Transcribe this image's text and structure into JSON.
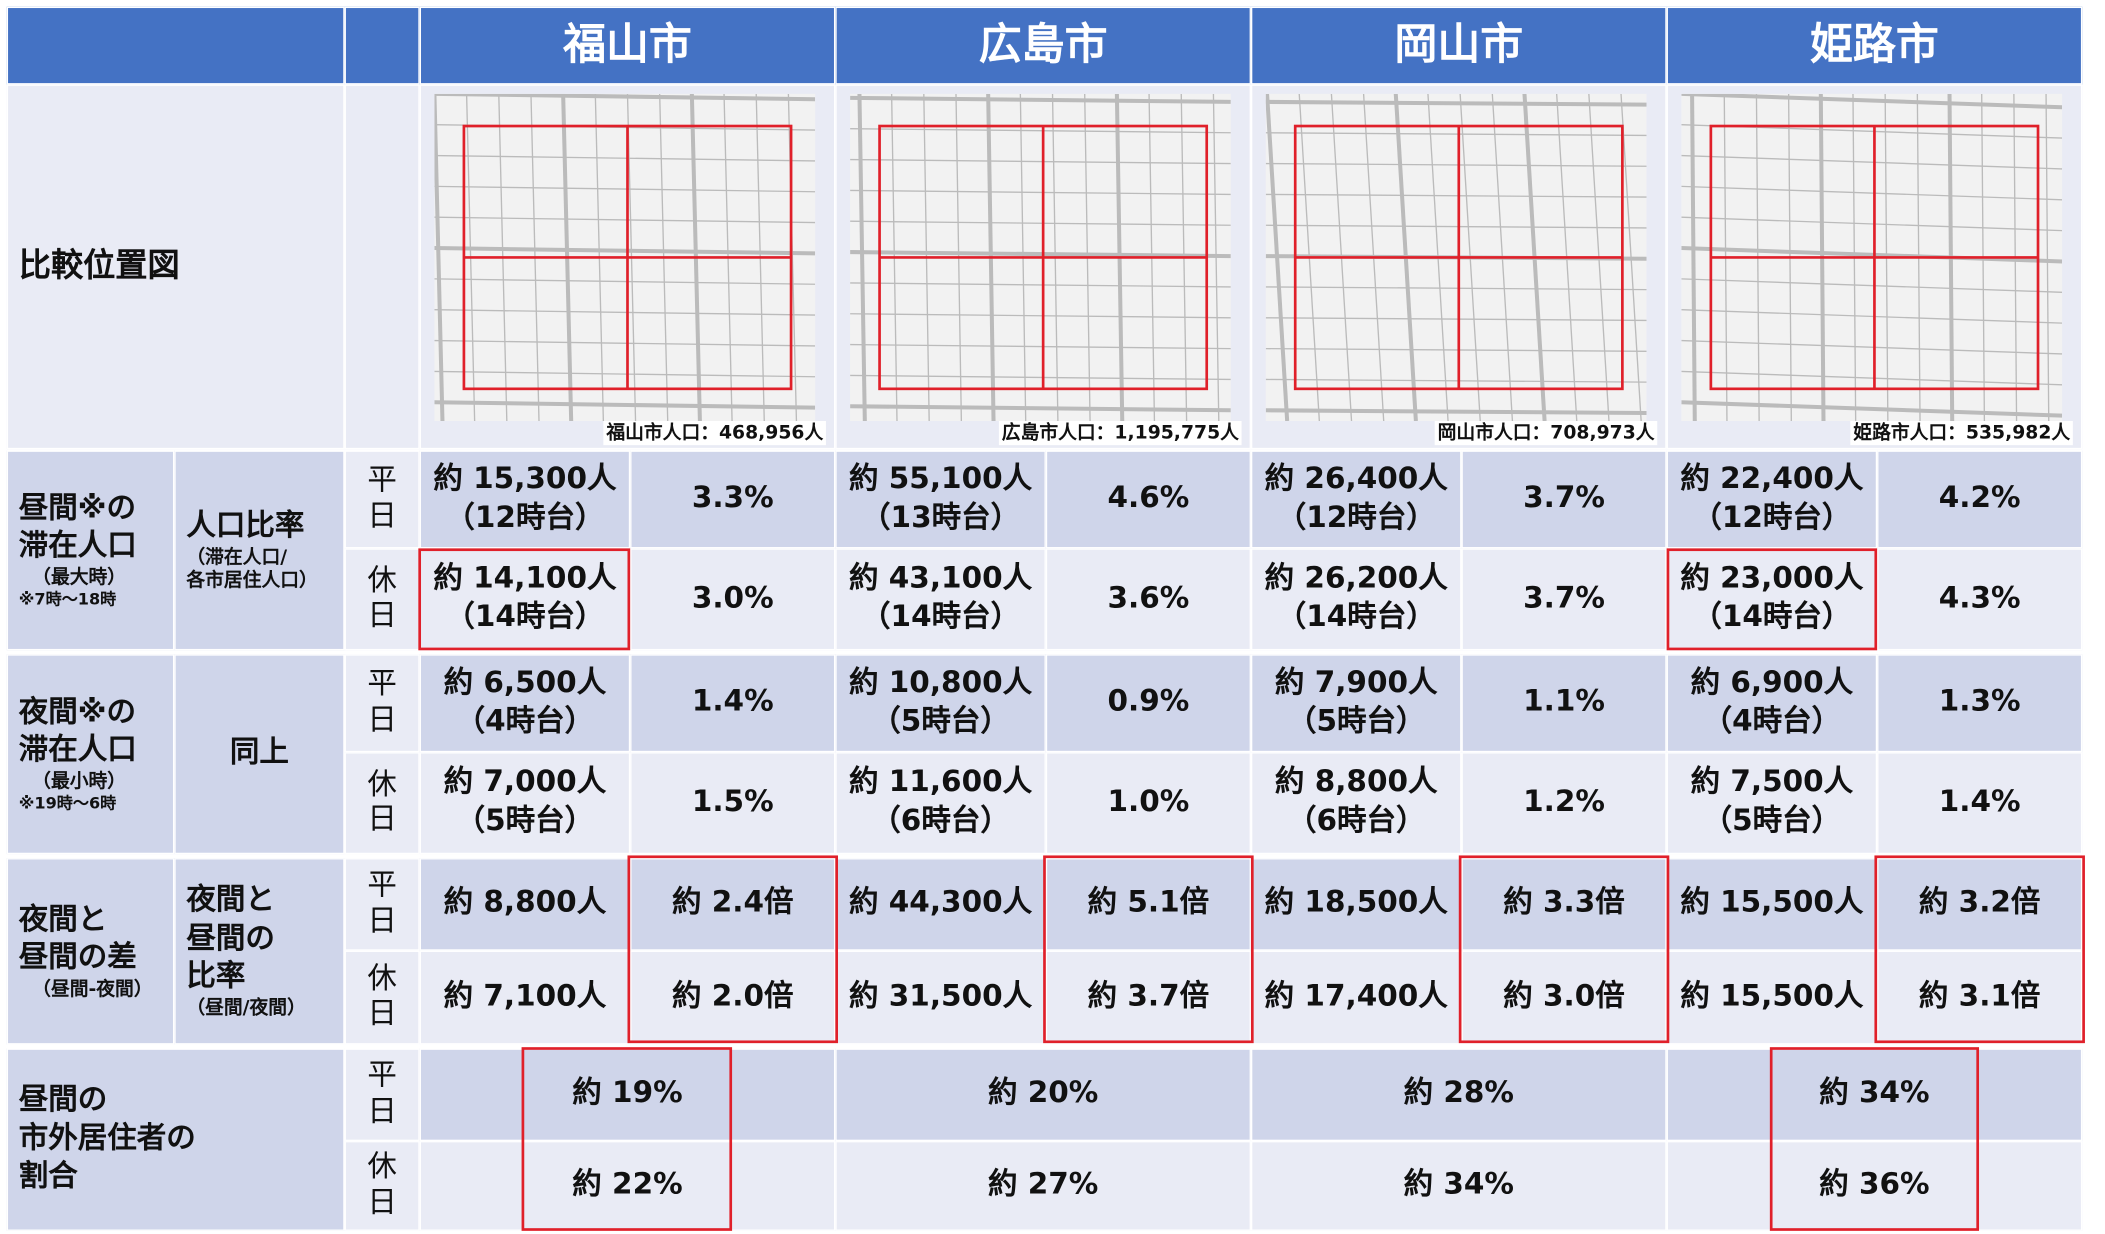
{
  "header": {
    "cities": [
      "福山市",
      "広島市",
      "岡山市",
      "姫路市"
    ]
  },
  "map": {
    "label": "比較位置図",
    "populations": [
      "福山市人口：468,956人",
      "広島市人口：1,195,775人",
      "岡山市人口：708,973人",
      "姫路市人口：535,982人"
    ]
  },
  "daytime": {
    "label": [
      "昼間※の",
      "滞在人口"
    ],
    "sub": "（最大時）",
    "note": "※7時～18時",
    "metric": [
      "人口比率"
    ],
    "metric_note": [
      "（滞在人口/",
      "各市居住人口）"
    ],
    "days": [
      "平日",
      "休日"
    ],
    "cells": [
      [
        {
          "count": "約 15,300人",
          "time": "（12時台）",
          "ratio": "3.3%"
        },
        {
          "count": "約 55,100人",
          "time": "（13時台）",
          "ratio": "4.6%"
        },
        {
          "count": "約 26,400人",
          "time": "（12時台）",
          "ratio": "3.7%"
        },
        {
          "count": "約 22,400人",
          "time": "（12時台）",
          "ratio": "4.2%"
        }
      ],
      [
        {
          "count": "約 14,100人",
          "time": "（14時台）",
          "ratio": "3.0%"
        },
        {
          "count": "約 43,100人",
          "time": "（14時台）",
          "ratio": "3.6%"
        },
        {
          "count": "約 26,200人",
          "time": "（14時台）",
          "ratio": "3.7%"
        },
        {
          "count": "約 23,000人",
          "time": "（14時台）",
          "ratio": "4.3%"
        }
      ]
    ]
  },
  "nighttime": {
    "label": [
      "夜間※の",
      "滞在人口"
    ],
    "sub": "（最小時）",
    "note": "※19時～6時",
    "metric": [
      "同上"
    ],
    "days": [
      "平日",
      "休日"
    ],
    "cells": [
      [
        {
          "count": "約 6,500人",
          "time": "（4時台）",
          "ratio": "1.4%"
        },
        {
          "count": "約 10,800人",
          "time": "（5時台）",
          "ratio": "0.9%"
        },
        {
          "count": "約 7,900人",
          "time": "（5時台）",
          "ratio": "1.1%"
        },
        {
          "count": "約 6,900人",
          "time": "（4時台）",
          "ratio": "1.3%"
        }
      ],
      [
        {
          "count": "約 7,000人",
          "time": "（5時台）",
          "ratio": "1.5%"
        },
        {
          "count": "約 11,600人",
          "time": "（6時台）",
          "ratio": "1.0%"
        },
        {
          "count": "約 8,800人",
          "time": "（6時台）",
          "ratio": "1.2%"
        },
        {
          "count": "約 7,500人",
          "time": "（5時台）",
          "ratio": "1.4%"
        }
      ]
    ]
  },
  "difference": {
    "label": [
      "夜間と",
      "昼間の差"
    ],
    "sub": "（昼間-夜間）",
    "metric": [
      "夜間と",
      "昼間の",
      "比率"
    ],
    "metric_note": [
      "（昼間/夜間）"
    ],
    "days": [
      "平日",
      "休日"
    ],
    "cells": [
      [
        {
          "count": "約 8,800人",
          "ratio": "約 2.4倍"
        },
        {
          "count": "約 44,300人",
          "ratio": "約 5.1倍"
        },
        {
          "count": "約 18,500人",
          "ratio": "約 3.3倍"
        },
        {
          "count": "約 15,500人",
          "ratio": "約 3.2倍"
        }
      ],
      [
        {
          "count": "約 7,100人",
          "ratio": "約 2.0倍"
        },
        {
          "count": "約 31,500人",
          "ratio": "約 3.7倍"
        },
        {
          "count": "約 17,400人",
          "ratio": "約 3.0倍"
        },
        {
          "count": "約 15,500人",
          "ratio": "約 3.1倍"
        }
      ]
    ]
  },
  "outside": {
    "label": [
      "昼間の",
      "市外居住者の",
      "割合"
    ],
    "days": [
      "平日",
      "休日"
    ],
    "cells": [
      [
        "約 19%",
        "約 20%",
        "約 28%",
        "約 34%"
      ],
      [
        "約 22%",
        "約 27%",
        "約 34%",
        "約 36%"
      ]
    ]
  }
}
